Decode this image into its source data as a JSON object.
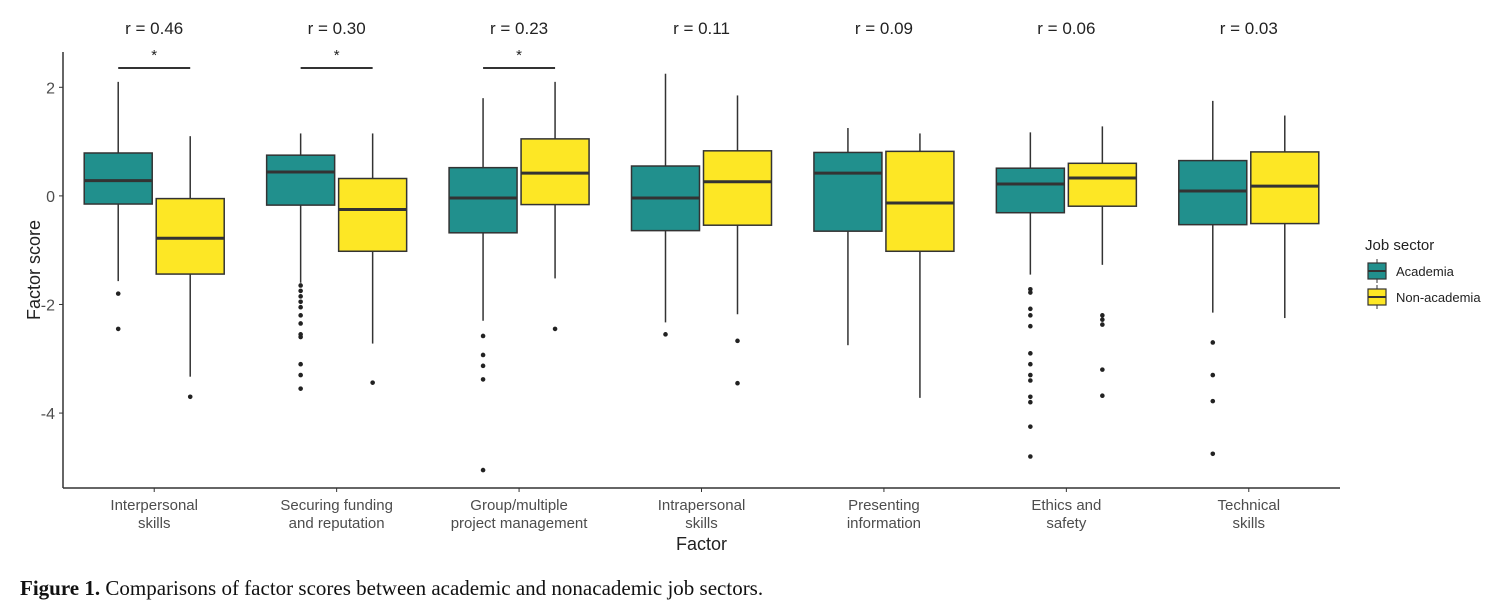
{
  "chart_data": {
    "type": "boxplot",
    "xlabel": "Factor",
    "ylabel": "Factor score",
    "ylim": [
      -5.38,
      2.65
    ],
    "yticks": [
      2,
      0,
      -2,
      -4
    ],
    "ytick_labels": [
      "2",
      "0",
      "-2",
      "-4"
    ],
    "grid": false,
    "legend": {
      "title": "Job sector",
      "placement": "right",
      "entries": [
        "Academia",
        "Non-academia"
      ]
    },
    "colors": {
      "Academia": "#21908d",
      "Non-academia": "#fde725",
      "outline": "#333333"
    },
    "categories": [
      {
        "label": [
          "Interpersonal",
          "skills"
        ],
        "r": "r = 0.46",
        "significant": true,
        "sig_label": "*",
        "boxes": [
          {
            "group": "Academia",
            "whisker_high": 2.1,
            "q3": 0.79,
            "median": 0.28,
            "q1": -0.15,
            "whisker_low": -1.57,
            "outliers": [
              -1.8,
              -2.45
            ]
          },
          {
            "group": "Non-academia",
            "whisker_high": 1.1,
            "q3": -0.05,
            "median": -0.78,
            "q1": -1.44,
            "whisker_low": -3.33,
            "outliers": [
              -3.7
            ]
          }
        ]
      },
      {
        "label": [
          "Securing funding",
          "and reputation"
        ],
        "r": "r = 0.30",
        "significant": true,
        "sig_label": "*",
        "boxes": [
          {
            "group": "Academia",
            "whisker_high": 1.15,
            "q3": 0.75,
            "median": 0.44,
            "q1": -0.17,
            "whisker_low": -1.6,
            "outliers": [
              -1.65,
              -1.75,
              -1.85,
              -1.95,
              -2.05,
              -2.2,
              -2.35,
              -2.55,
              -2.6,
              -3.1,
              -3.3,
              -3.55
            ]
          },
          {
            "group": "Non-academia",
            "whisker_high": 1.15,
            "q3": 0.32,
            "median": -0.25,
            "q1": -1.02,
            "whisker_low": -2.72,
            "outliers": [
              -3.44
            ]
          }
        ]
      },
      {
        "label": [
          "Group/multiple",
          "project management"
        ],
        "r": "r = 0.23",
        "significant": true,
        "sig_label": "*",
        "boxes": [
          {
            "group": "Academia",
            "whisker_high": 1.8,
            "q3": 0.52,
            "median": -0.04,
            "q1": -0.68,
            "whisker_low": -2.3,
            "outliers": [
              -2.58,
              -2.93,
              -3.13,
              -3.38,
              -5.05
            ]
          },
          {
            "group": "Non-academia",
            "whisker_high": 2.1,
            "q3": 1.05,
            "median": 0.42,
            "q1": -0.16,
            "whisker_low": -1.52,
            "outliers": [
              -2.45
            ]
          }
        ]
      },
      {
        "label": [
          "Intrapersonal",
          "skills"
        ],
        "r": "r = 0.11",
        "significant": false,
        "boxes": [
          {
            "group": "Academia",
            "whisker_high": 2.25,
            "q3": 0.55,
            "median": -0.04,
            "q1": -0.64,
            "whisker_low": -2.33,
            "outliers": [
              -2.55
            ]
          },
          {
            "group": "Non-academia",
            "whisker_high": 1.85,
            "q3": 0.83,
            "median": 0.26,
            "q1": -0.54,
            "whisker_low": -2.18,
            "outliers": [
              -2.67,
              -3.45
            ]
          }
        ]
      },
      {
        "label": [
          "Presenting",
          "information"
        ],
        "r": "r = 0.09",
        "significant": false,
        "boxes": [
          {
            "group": "Academia",
            "whisker_high": 1.25,
            "q3": 0.8,
            "median": 0.42,
            "q1": -0.65,
            "whisker_low": -2.75,
            "outliers": []
          },
          {
            "group": "Non-academia",
            "whisker_high": 1.15,
            "q3": 0.82,
            "median": -0.13,
            "q1": -1.02,
            "whisker_low": -3.72,
            "outliers": []
          }
        ]
      },
      {
        "label": [
          "Ethics and",
          "safety"
        ],
        "r": "r = 0.06",
        "significant": false,
        "boxes": [
          {
            "group": "Academia",
            "whisker_high": 1.17,
            "q3": 0.51,
            "median": 0.22,
            "q1": -0.31,
            "whisker_low": -1.45,
            "outliers": [
              -1.72,
              -1.78,
              -2.08,
              -2.2,
              -2.4,
              -2.9,
              -3.1,
              -3.3,
              -3.4,
              -3.7,
              -3.8,
              -4.25,
              -4.8
            ]
          },
          {
            "group": "Non-academia",
            "whisker_high": 1.28,
            "q3": 0.6,
            "median": 0.33,
            "q1": -0.19,
            "whisker_low": -1.27,
            "outliers": [
              -2.2,
              -2.28,
              -2.37,
              -3.2,
              -3.68
            ]
          }
        ]
      },
      {
        "label": [
          "Technical",
          "skills"
        ],
        "r": "r = 0.03",
        "significant": false,
        "boxes": [
          {
            "group": "Academia",
            "whisker_high": 1.75,
            "q3": 0.65,
            "median": 0.09,
            "q1": -0.53,
            "whisker_low": -2.15,
            "outliers": [
              -2.7,
              -3.3,
              -3.78,
              -4.75
            ]
          },
          {
            "group": "Non-academia",
            "whisker_high": 1.48,
            "q3": 0.81,
            "median": 0.18,
            "q1": -0.51,
            "whisker_low": -2.25,
            "outliers": []
          }
        ]
      }
    ]
  },
  "caption": {
    "label": "Figure 1.",
    "text": " Comparisons of factor scores between academic and nonacademic job sectors."
  }
}
